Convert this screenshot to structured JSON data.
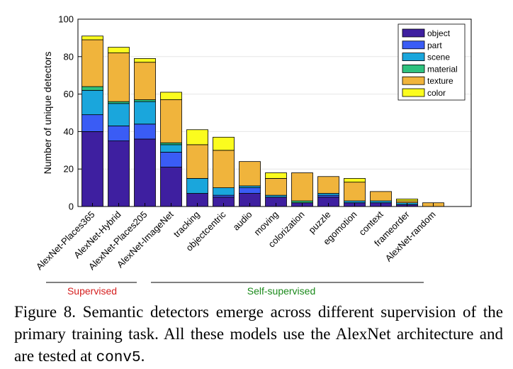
{
  "chart_data": {
    "type": "bar",
    "stacked": true,
    "ylabel": "Number of unique detectors",
    "ylim": [
      0,
      100
    ],
    "yticks": [
      0,
      20,
      40,
      60,
      80,
      100
    ],
    "grid": true,
    "legend_position": "top-right",
    "categories": [
      "AlexNet-Places365",
      "AlexNet-Hybrid",
      "AlexNet-Places205",
      "AlexNet-ImageNet",
      "tracking",
      "objectcentric",
      "audio",
      "moving",
      "colorization",
      "puzzle",
      "egomotion",
      "context",
      "frameorder",
      "AlexNet-random"
    ],
    "series": [
      {
        "name": "object",
        "color": "#3e1fa0",
        "values": [
          40,
          35,
          36,
          21,
          7,
          5,
          7,
          5,
          2,
          5,
          2,
          2,
          1,
          0
        ]
      },
      {
        "name": "part",
        "color": "#3a5cf5",
        "values": [
          9,
          8,
          8,
          8,
          0,
          1,
          3,
          0,
          0,
          1,
          0,
          0,
          0,
          0
        ]
      },
      {
        "name": "scene",
        "color": "#1aa6dc",
        "values": [
          13,
          12,
          12,
          4,
          8,
          4,
          1,
          1,
          0,
          1,
          1,
          1,
          1,
          0
        ]
      },
      {
        "name": "material",
        "color": "#2ec27e",
        "values": [
          2,
          1,
          1,
          1,
          0,
          0,
          0,
          0,
          1,
          0,
          0,
          0,
          0,
          0
        ]
      },
      {
        "name": "texture",
        "color": "#f0b43c",
        "values": [
          25,
          26,
          20,
          23,
          18,
          20,
          13,
          9,
          15,
          9,
          10,
          5,
          1,
          2
        ]
      },
      {
        "name": "color",
        "color": "#fbfc1e",
        "values": [
          2,
          3,
          2,
          4,
          8,
          7,
          0,
          3,
          0,
          0,
          2,
          0,
          1,
          0
        ]
      }
    ],
    "groups": [
      {
        "label": "Supervised",
        "color": "#d62020"
      },
      {
        "label": "Self-supervised",
        "color": "#1b8a1b"
      }
    ]
  },
  "caption": {
    "prefix": "Figure 8. Semantic detectors emerge across different supervision of the primary training task.  All these models use the AlexNet architecture and are tested at ",
    "code": "conv5",
    "suffix": "."
  }
}
